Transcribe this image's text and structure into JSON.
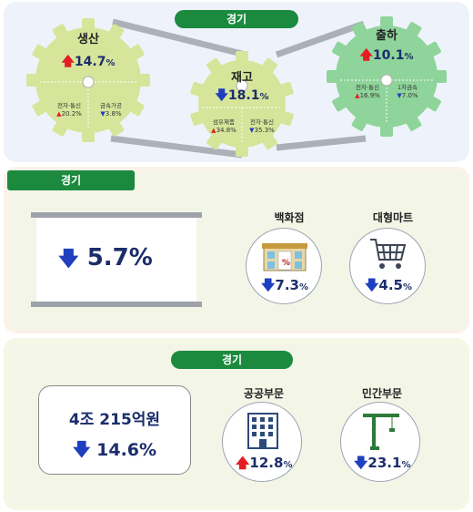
{
  "section1": {
    "label": "경기",
    "production": {
      "title": "생산",
      "value": "14.7",
      "unit": "%",
      "direction": "up",
      "items": [
        {
          "name": "전자·통신",
          "value": "20.2%",
          "direction": "up"
        },
        {
          "name": "금속가공",
          "value": "3.8%",
          "direction": "down"
        }
      ]
    },
    "inventory": {
      "title": "재고",
      "value": "18.1",
      "unit": "%",
      "direction": "down",
      "items": [
        {
          "name": "섬유제품",
          "value": "34.8%",
          "direction": "up"
        },
        {
          "name": "전자·통신",
          "value": "35.3%",
          "direction": "down"
        }
      ]
    },
    "shipment": {
      "title": "출하",
      "value": "10.1",
      "unit": "%",
      "direction": "up",
      "items": [
        {
          "name": "전자·통신",
          "value": "16.9%",
          "direction": "up"
        },
        {
          "name": "1차금속",
          "value": "7.0%",
          "direction": "down"
        }
      ]
    }
  },
  "section2": {
    "label": "경기",
    "total": {
      "value": "5.7%",
      "direction": "down"
    },
    "department_store": {
      "label": "백화점",
      "value": "7.3",
      "unit": "%",
      "direction": "down",
      "icon": "department-store-icon"
    },
    "hypermarket": {
      "label": "대형마트",
      "value": "4.5",
      "unit": "%",
      "direction": "down",
      "icon": "shopping-cart-icon"
    }
  },
  "section3": {
    "label": "경기",
    "total": {
      "amount": "4조 215억원",
      "value": "14.6%",
      "direction": "down"
    },
    "public": {
      "label": "공공부문",
      "value": "12.8",
      "unit": "%",
      "direction": "up",
      "icon": "building-icon"
    },
    "private": {
      "label": "민간부문",
      "value": "23.1",
      "unit": "%",
      "direction": "down",
      "icon": "crane-icon"
    }
  },
  "colors": {
    "up": "#e31e24",
    "down": "#1f3fbf",
    "green": "#1c8a3e",
    "gear_light": "#d6e59a",
    "gear_dark": "#8fd49a"
  }
}
